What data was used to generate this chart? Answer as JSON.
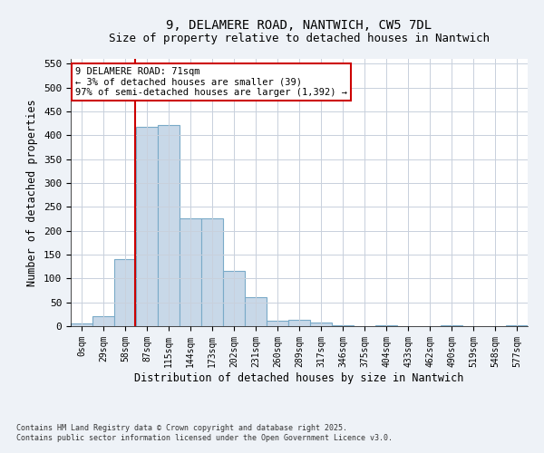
{
  "title": "9, DELAMERE ROAD, NANTWICH, CW5 7DL",
  "subtitle": "Size of property relative to detached houses in Nantwich",
  "xlabel": "Distribution of detached houses by size in Nantwich",
  "ylabel": "Number of detached properties",
  "bar_color": "#c8d8e8",
  "bar_edge_color": "#7aaac8",
  "bin_labels": [
    "0sqm",
    "29sqm",
    "58sqm",
    "87sqm",
    "115sqm",
    "144sqm",
    "173sqm",
    "202sqm",
    "231sqm",
    "260sqm",
    "289sqm",
    "317sqm",
    "346sqm",
    "375sqm",
    "404sqm",
    "433sqm",
    "462sqm",
    "490sqm",
    "519sqm",
    "548sqm",
    "577sqm"
  ],
  "bar_heights": [
    5,
    20,
    140,
    418,
    422,
    226,
    226,
    115,
    60,
    12,
    14,
    7,
    1,
    0,
    1,
    0,
    0,
    2,
    0,
    0,
    1
  ],
  "ylim": [
    0,
    560
  ],
  "yticks": [
    0,
    50,
    100,
    150,
    200,
    250,
    300,
    350,
    400,
    450,
    500,
    550
  ],
  "vline_color": "#cc0000",
  "annotation_text": "9 DELAMERE ROAD: 71sqm\n← 3% of detached houses are smaller (39)\n97% of semi-detached houses are larger (1,392) →",
  "annotation_box_color": "#ffffff",
  "annotation_box_edge": "#cc0000",
  "footnote": "Contains HM Land Registry data © Crown copyright and database right 2025.\nContains public sector information licensed under the Open Government Licence v3.0.",
  "bg_color": "#eef2f7",
  "plot_bg_color": "#ffffff",
  "grid_color": "#c8d0dc"
}
